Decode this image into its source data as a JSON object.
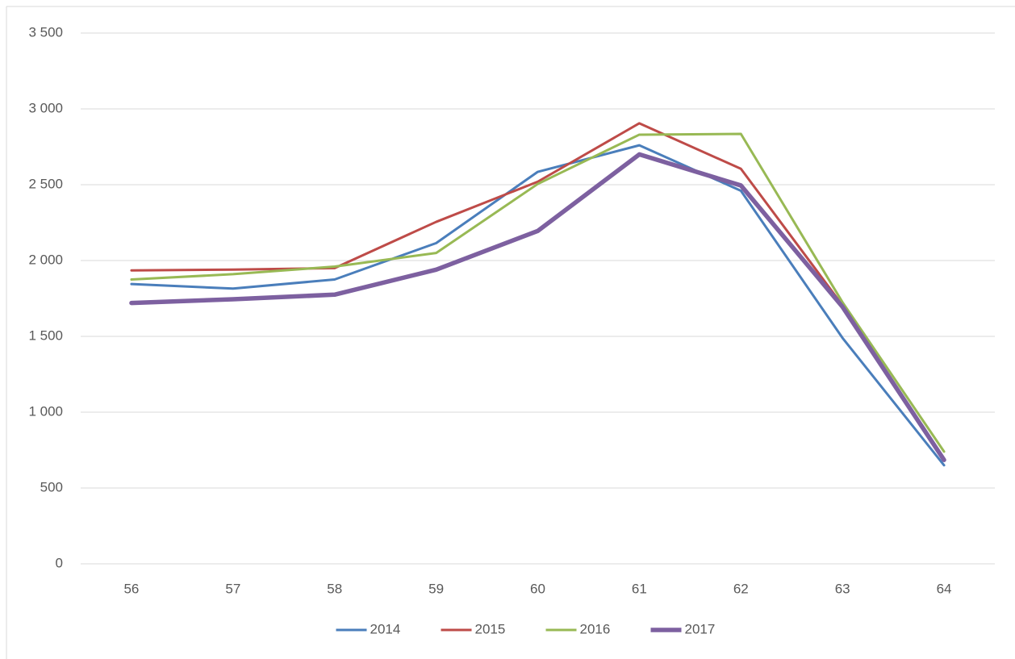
{
  "chart_data": {
    "type": "line",
    "categories": [
      "56",
      "57",
      "58",
      "59",
      "60",
      "61",
      "62",
      "63",
      "64"
    ],
    "series": [
      {
        "name": "2014",
        "color": "#4a7ebb",
        "width": 3,
        "values": [
          1845,
          1815,
          1875,
          2115,
          2585,
          2760,
          2460,
          1490,
          650
        ]
      },
      {
        "name": "2015",
        "color": "#be4b48",
        "width": 3,
        "values": [
          1935,
          1940,
          1950,
          2255,
          2520,
          2905,
          2605,
          1705,
          695
        ]
      },
      {
        "name": "2016",
        "color": "#98b954",
        "width": 3,
        "values": [
          1875,
          1910,
          1960,
          2050,
          2505,
          2830,
          2835,
          1725,
          740
        ]
      },
      {
        "name": "2017",
        "color": "#7d60a0",
        "width": 5.5,
        "values": [
          1720,
          1745,
          1775,
          1940,
          2195,
          2700,
          2495,
          1695,
          685
        ]
      }
    ],
    "ylim": [
      0,
      3500
    ],
    "yticks": [
      0,
      500,
      {
        "value": 1000,
        "label": "1 000"
      },
      {
        "value": 1500,
        "label": "1 500"
      },
      {
        "value": 2000,
        "label": "2 000"
      },
      {
        "value": 2500,
        "label": "2 500"
      },
      {
        "value": 3000,
        "label": "3 000"
      },
      {
        "value": 3500,
        "label": "3 500"
      }
    ],
    "grid": true,
    "legend": "bottom"
  }
}
